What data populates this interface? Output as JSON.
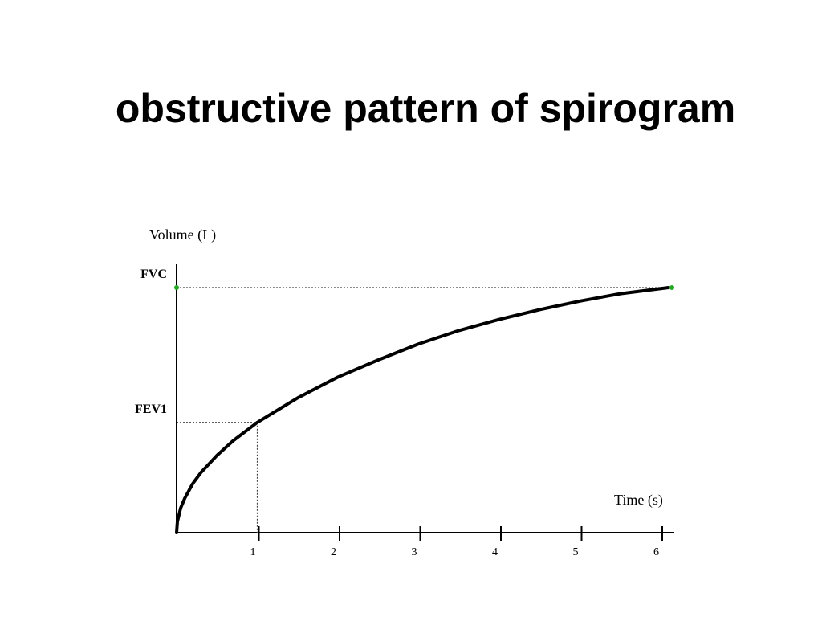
{
  "slide": {
    "title": "obstructive pattern of spirogram"
  },
  "chart_data": {
    "type": "line",
    "xlabel": "Time (s)",
    "ylabel": "Volume (L)",
    "x_ticks": [
      "1",
      "2",
      "3",
      "4",
      "5",
      "6"
    ],
    "y_levels": [
      {
        "label": "FEV1",
        "x": 1
      },
      {
        "label": "FVC",
        "x": 6.1
      }
    ],
    "series": [
      {
        "points": [
          [
            0,
            0
          ],
          [
            0.01,
            0.09
          ],
          [
            0.05,
            0.2
          ],
          [
            0.1,
            0.28
          ],
          [
            0.2,
            0.4
          ],
          [
            0.3,
            0.49
          ],
          [
            0.5,
            0.63
          ],
          [
            0.7,
            0.75
          ],
          [
            1.0,
            0.9
          ],
          [
            1.5,
            1.1
          ],
          [
            2.0,
            1.27
          ],
          [
            2.5,
            1.41
          ],
          [
            3.0,
            1.54
          ],
          [
            3.5,
            1.65
          ],
          [
            4.0,
            1.74
          ],
          [
            4.5,
            1.82
          ],
          [
            5.0,
            1.89
          ],
          [
            5.5,
            1.95
          ],
          [
            6.1,
            2.0
          ]
        ]
      }
    ],
    "xlim": [
      0,
      6.2
    ],
    "ylim": [
      0,
      2.0
    ],
    "grid": false,
    "colors": {
      "curve": "#000000",
      "guides": "#444444",
      "endpoints": "#22aa22"
    }
  }
}
